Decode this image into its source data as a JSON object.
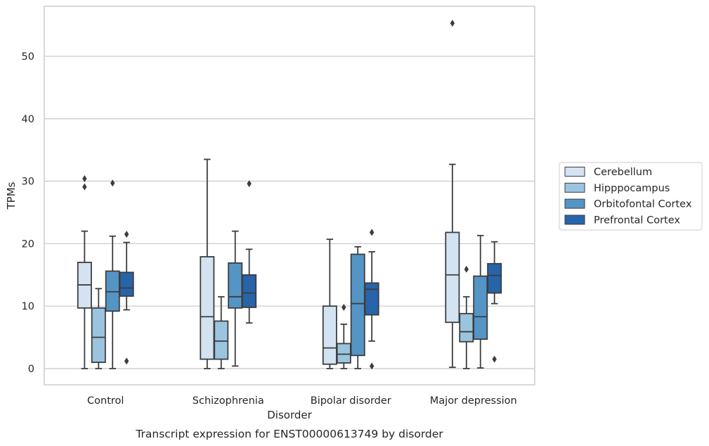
{
  "caption": "Transcript expression for ENST00000613749 by disorder",
  "chart_data": {
    "type": "box",
    "xlabel": "Disorder",
    "ylabel": "TPMs",
    "ylim": [
      -2.6,
      58.0
    ],
    "yticks": [
      0,
      10,
      20,
      30,
      40,
      50
    ],
    "grid": "horizontal",
    "legend_position": "right",
    "categories": [
      "Control",
      "Schizophrenia",
      "Bipolar disorder",
      "Major depression"
    ],
    "series": [
      {
        "name": "Cerebellum",
        "color": "#d3e3f2"
      },
      {
        "name": "Hipppocampus",
        "color": "#9bc4df"
      },
      {
        "name": "Orbitofontal Cortex",
        "color": "#5495c6"
      },
      {
        "name": "Prefrontal Cortex",
        "color": "#2764a9"
      }
    ],
    "boxes": [
      [
        {
          "whislo": 0.0,
          "q1": 9.7,
          "med": 13.4,
          "q3": 17.0,
          "whishi": 22.0,
          "fliers": [
            29.1,
            30.4
          ]
        },
        {
          "whislo": 0.0,
          "q1": 1.0,
          "med": 5.0,
          "q3": 9.7,
          "whishi": 12.8,
          "fliers": []
        },
        {
          "whislo": 0.0,
          "q1": 9.2,
          "med": 12.3,
          "q3": 15.6,
          "whishi": 21.2,
          "fliers": [
            29.7
          ]
        },
        {
          "whislo": 9.4,
          "q1": 11.6,
          "med": 12.9,
          "q3": 15.4,
          "whishi": 20.2,
          "fliers": [
            1.2,
            21.5
          ]
        }
      ],
      [
        {
          "whislo": 0.0,
          "q1": 1.5,
          "med": 8.3,
          "q3": 17.9,
          "whishi": 33.5,
          "fliers": []
        },
        {
          "whislo": 0.0,
          "q1": 1.5,
          "med": 4.4,
          "q3": 7.6,
          "whishi": 11.5,
          "fliers": []
        },
        {
          "whislo": 0.4,
          "q1": 9.7,
          "med": 11.5,
          "q3": 16.9,
          "whishi": 22.0,
          "fliers": []
        },
        {
          "whislo": 7.3,
          "q1": 9.8,
          "med": 12.1,
          "q3": 15.0,
          "whishi": 19.1,
          "fliers": [
            29.6
          ]
        }
      ],
      [
        {
          "whislo": 0.0,
          "q1": 0.7,
          "med": 3.3,
          "q3": 10.0,
          "whishi": 20.7,
          "fliers": []
        },
        {
          "whislo": 0.0,
          "q1": 0.9,
          "med": 2.3,
          "q3": 4.0,
          "whishi": 7.1,
          "fliers": [
            9.8
          ]
        },
        {
          "whislo": 0.0,
          "q1": 2.1,
          "med": 10.4,
          "q3": 18.3,
          "whishi": 19.5,
          "fliers": []
        },
        {
          "whislo": 4.4,
          "q1": 8.6,
          "med": 12.7,
          "q3": 13.7,
          "whishi": 18.7,
          "fliers": [
            0.4,
            21.8
          ]
        }
      ],
      [
        {
          "whislo": 0.2,
          "q1": 7.4,
          "med": 15.0,
          "q3": 21.8,
          "whishi": 32.7,
          "fliers": [
            55.3
          ]
        },
        {
          "whislo": 0.0,
          "q1": 4.3,
          "med": 5.9,
          "q3": 8.8,
          "whishi": 11.5,
          "fliers": [
            15.9
          ]
        },
        {
          "whislo": 0.1,
          "q1": 4.7,
          "med": 8.3,
          "q3": 14.8,
          "whishi": 21.3,
          "fliers": []
        },
        {
          "whislo": 10.4,
          "q1": 12.1,
          "med": 14.9,
          "q3": 16.8,
          "whishi": 20.3,
          "fliers": [
            1.5
          ]
        }
      ]
    ]
  }
}
